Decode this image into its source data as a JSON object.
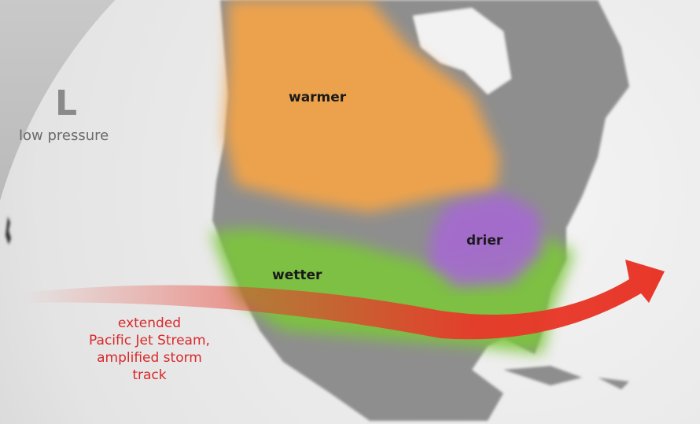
{
  "legend": {
    "symbol": "L",
    "label": "low pressure"
  },
  "regions": [
    {
      "label": "warmer",
      "color": "#f5a447"
    },
    {
      "label": "drier",
      "color": "#a56ad0"
    },
    {
      "label": "wetter",
      "color": "#7cc63a"
    }
  ],
  "jet_stream": {
    "label_lines": [
      "extended",
      "Pacific Jet Stream,",
      "amplified storm",
      "track"
    ],
    "color": "#e8382a"
  }
}
